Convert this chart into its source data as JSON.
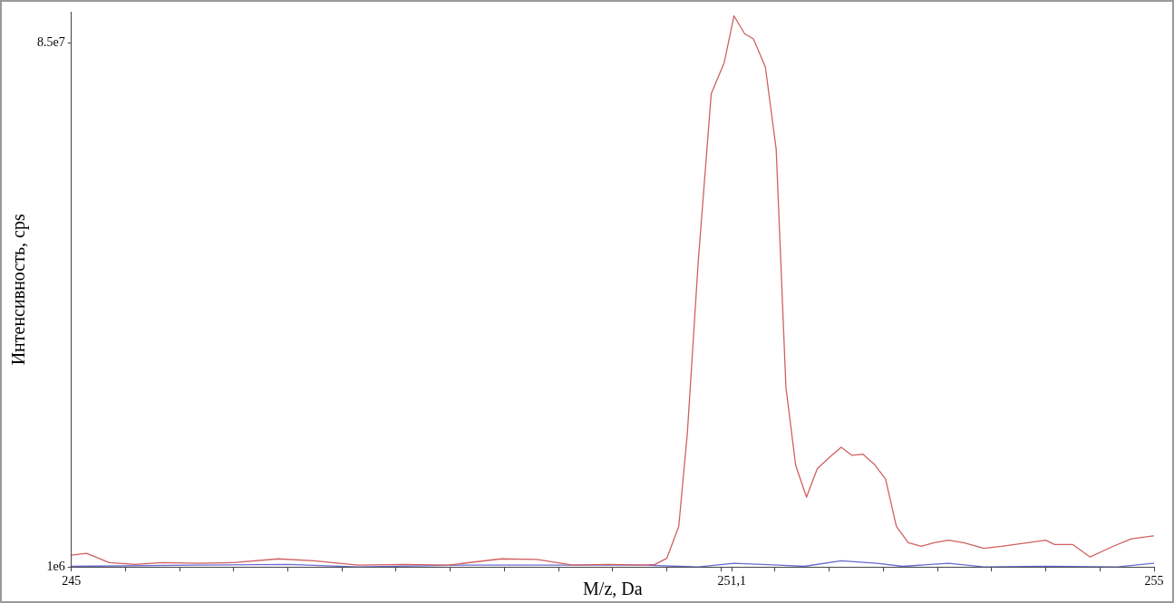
{
  "chart_data": {
    "type": "line",
    "xlabel": "M/z, Da",
    "ylabel": "Интенсивность, cps",
    "x": [
      245.0,
      245.14,
      245.35,
      245.59,
      245.84,
      246.17,
      246.5,
      246.91,
      247.24,
      247.65,
      248.07,
      248.48,
      248.97,
      249.3,
      249.63,
      249.96,
      250.29,
      250.39,
      250.5,
      250.61,
      250.69,
      250.79,
      250.91,
      251.03,
      251.12,
      251.22,
      251.3,
      251.41,
      251.51,
      251.6,
      251.69,
      251.79,
      251.89,
      252.01,
      252.11,
      252.21,
      252.31,
      252.42,
      252.52,
      252.62,
      252.73,
      252.85,
      252.97,
      253.1,
      253.24,
      253.43,
      253.59,
      253.76,
      254.0,
      254.08,
      254.25,
      254.41,
      254.62,
      254.79,
      255.0
    ],
    "series": [
      {
        "color": "#d06060",
        "values": [
          2900000,
          3200000,
          1700000,
          1400000,
          1700000,
          1600000,
          1700000,
          2300000,
          2000000,
          1300000,
          1400000,
          1300000,
          2300000,
          2200000,
          1300000,
          1400000,
          1300000,
          1400000,
          2400000,
          7500000,
          22600000,
          50000000,
          76900000,
          81900000,
          89400000,
          86500000,
          85700000,
          81200000,
          68000000,
          29800000,
          17300000,
          12200000,
          16800000,
          18700000,
          20200000,
          18900000,
          19100000,
          17400000,
          15100000,
          7500000,
          4900000,
          4300000,
          4900000,
          5300000,
          4900000,
          4000000,
          4300000,
          4700000,
          5300000,
          4600000,
          4600000,
          2600000,
          4300000,
          5500000,
          6000000
        ]
      },
      {
        "color": "#6a6ad0",
        "x": [
          245.0,
          246.17,
          247.0,
          247.65,
          248.64,
          249.8,
          250.29,
          250.79,
          251.12,
          251.53,
          251.77,
          252.11,
          252.44,
          252.68,
          253.1,
          253.43,
          254.0,
          254.66,
          255.0
        ],
        "values": [
          1100000,
          1300000,
          1400000,
          1000000,
          1300000,
          1300000,
          1300000,
          1000000,
          1600000,
          1300000,
          1100000,
          2000000,
          1600000,
          1100000,
          1600000,
          1000000,
          1100000,
          1000000,
          1600000
        ]
      }
    ],
    "xlim": [
      245,
      255
    ],
    "xticks": [
      245,
      {
        "value": 245.5,
        "label": null
      },
      {
        "value": 246,
        "label": null
      },
      {
        "value": 246.5,
        "label": null
      },
      {
        "value": 247,
        "label": null
      },
      {
        "value": 247.5,
        "label": null
      },
      {
        "value": 248,
        "label": null
      },
      {
        "value": 248.5,
        "label": null
      },
      {
        "value": 249,
        "label": null
      },
      {
        "value": 249.5,
        "label": null
      },
      {
        "value": 250,
        "label": null
      },
      {
        "value": 250.5,
        "label": null
      },
      {
        "value": 251,
        "label": null
      },
      {
        "value": 251.1,
        "label": "251,1"
      },
      {
        "value": 251.5,
        "label": null
      },
      {
        "value": 252,
        "label": null
      },
      {
        "value": 252.5,
        "label": null
      },
      {
        "value": 253,
        "label": null
      },
      {
        "value": 253.5,
        "label": null
      },
      {
        "value": 254,
        "label": null
      },
      {
        "value": 254.5,
        "label": null
      },
      255
    ],
    "ylim": [
      1000000,
      90000000
    ],
    "yticks": [
      {
        "value": 1000000,
        "label": "1e6"
      },
      {
        "value": 85000000,
        "label": "8.5e7"
      }
    ],
    "grid": false,
    "legend": false,
    "marker": "none",
    "line_style": "solid"
  }
}
